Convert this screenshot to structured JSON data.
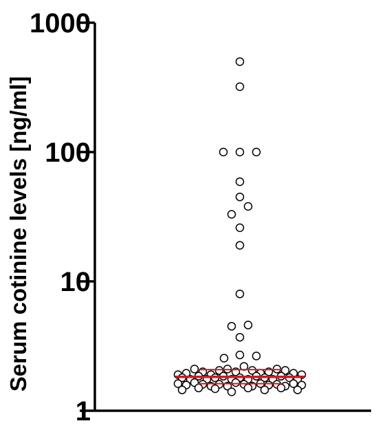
{
  "chart_data": {
    "type": "scatter",
    "title": "",
    "xlabel": "",
    "ylabel": "Serum cotinine levels [ng/ml]",
    "yscale": "log",
    "ylim": [
      1,
      1000
    ],
    "yticks": [
      {
        "value": 1,
        "label": "1"
      },
      {
        "value": 10,
        "label": "10"
      },
      {
        "value": 100,
        "label": "100"
      },
      {
        "value": 1000,
        "label": "1000"
      }
    ],
    "grid": false,
    "legend": "none",
    "marker_color": "#000000",
    "marker_fill": "#ffffff",
    "summary_line_color": "#d0191e",
    "summary_lines": {
      "median": 1.83,
      "q1": 1.62,
      "q3": 2.08
    },
    "points": [
      {
        "x": 0.0,
        "y": 500
      },
      {
        "x": 0.0,
        "y": 320
      },
      {
        "x": -0.24,
        "y": 100
      },
      {
        "x": 0.0,
        "y": 100
      },
      {
        "x": 0.24,
        "y": 100
      },
      {
        "x": 0.0,
        "y": 59
      },
      {
        "x": 0.0,
        "y": 45
      },
      {
        "x": 0.12,
        "y": 38
      },
      {
        "x": -0.12,
        "y": 33
      },
      {
        "x": 0.0,
        "y": 26
      },
      {
        "x": 0.0,
        "y": 19
      },
      {
        "x": 0.0,
        "y": 8
      },
      {
        "x": -0.12,
        "y": 4.5
      },
      {
        "x": 0.12,
        "y": 4.6
      },
      {
        "x": 0.0,
        "y": 3.7
      },
      {
        "x": 0.0,
        "y": 2.7
      },
      {
        "x": -0.23,
        "y": 2.55
      },
      {
        "x": 0.24,
        "y": 2.65
      },
      {
        "x": -0.9,
        "y": 1.9
      },
      {
        "x": -0.78,
        "y": 1.95
      },
      {
        "x": -0.66,
        "y": 2.1
      },
      {
        "x": -0.54,
        "y": 2.0
      },
      {
        "x": -0.42,
        "y": 1.9
      },
      {
        "x": -0.3,
        "y": 2.05
      },
      {
        "x": -0.18,
        "y": 2.1
      },
      {
        "x": -0.06,
        "y": 2.0
      },
      {
        "x": 0.06,
        "y": 2.2
      },
      {
        "x": 0.18,
        "y": 2.05
      },
      {
        "x": 0.3,
        "y": 1.95
      },
      {
        "x": 0.42,
        "y": 2.0
      },
      {
        "x": 0.54,
        "y": 2.1
      },
      {
        "x": 0.66,
        "y": 2.05
      },
      {
        "x": 0.78,
        "y": 1.95
      },
      {
        "x": 0.9,
        "y": 1.9
      },
      {
        "x": -0.84,
        "y": 1.8
      },
      {
        "x": -0.72,
        "y": 1.75
      },
      {
        "x": -0.6,
        "y": 1.85
      },
      {
        "x": -0.48,
        "y": 1.75
      },
      {
        "x": -0.36,
        "y": 1.8
      },
      {
        "x": -0.24,
        "y": 1.85
      },
      {
        "x": -0.12,
        "y": 1.75
      },
      {
        "x": 0.0,
        "y": 1.8
      },
      {
        "x": 0.12,
        "y": 1.75
      },
      {
        "x": 0.24,
        "y": 1.85
      },
      {
        "x": 0.36,
        "y": 1.8
      },
      {
        "x": 0.48,
        "y": 1.75
      },
      {
        "x": 0.6,
        "y": 1.85
      },
      {
        "x": 0.72,
        "y": 1.8
      },
      {
        "x": 0.84,
        "y": 1.75
      },
      {
        "x": -0.9,
        "y": 1.62
      },
      {
        "x": -0.78,
        "y": 1.58
      },
      {
        "x": -0.66,
        "y": 1.65
      },
      {
        "x": -0.54,
        "y": 1.6
      },
      {
        "x": -0.42,
        "y": 1.55
      },
      {
        "x": -0.3,
        "y": 1.6
      },
      {
        "x": -0.18,
        "y": 1.55
      },
      {
        "x": -0.06,
        "y": 1.65
      },
      {
        "x": 0.06,
        "y": 1.6
      },
      {
        "x": 0.18,
        "y": 1.55
      },
      {
        "x": 0.3,
        "y": 1.62
      },
      {
        "x": 0.42,
        "y": 1.58
      },
      {
        "x": 0.54,
        "y": 1.6
      },
      {
        "x": 0.66,
        "y": 1.55
      },
      {
        "x": 0.78,
        "y": 1.62
      },
      {
        "x": 0.9,
        "y": 1.58
      },
      {
        "x": -0.84,
        "y": 1.45
      },
      {
        "x": -0.6,
        "y": 1.5
      },
      {
        "x": -0.36,
        "y": 1.48
      },
      {
        "x": -0.12,
        "y": 1.4
      },
      {
        "x": 0.12,
        "y": 1.5
      },
      {
        "x": 0.36,
        "y": 1.45
      },
      {
        "x": 0.6,
        "y": 1.5
      },
      {
        "x": 0.84,
        "y": 1.45
      }
    ]
  }
}
